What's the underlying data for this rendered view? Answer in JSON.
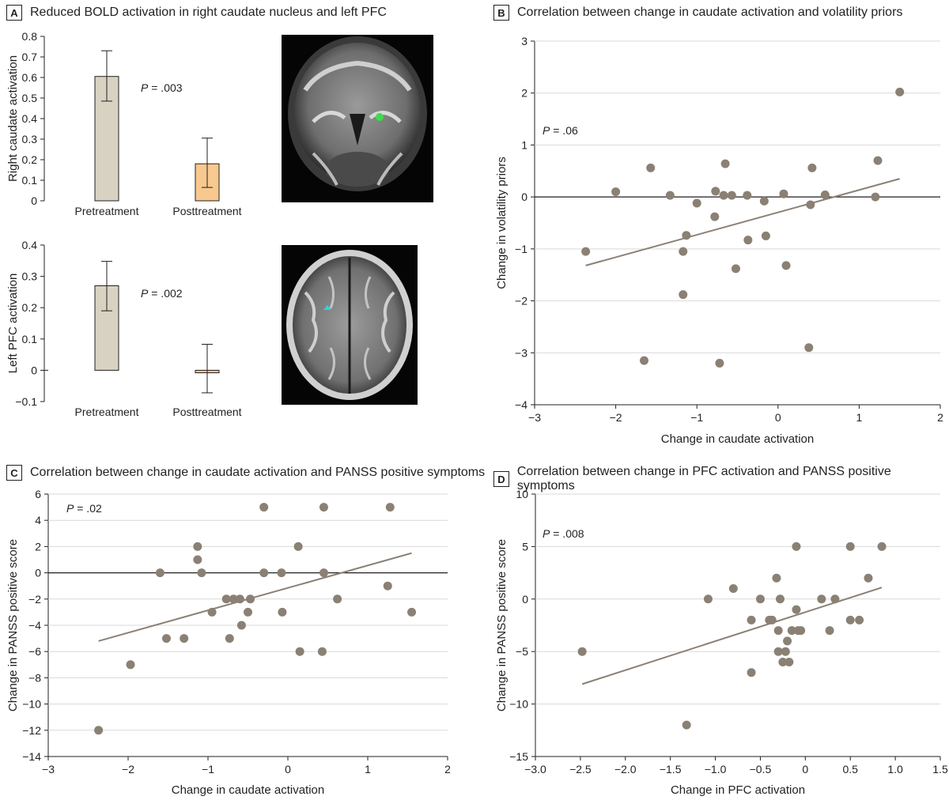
{
  "panel_a": {
    "badge": "A",
    "title": "Reduced BOLD activation in right caudate nucleus and left PFC"
  },
  "panel_b": {
    "badge": "B",
    "title": "Correlation between change in caudate activation and volatility priors"
  },
  "panel_c": {
    "badge": "C",
    "title": "Correlation between change in caudate activation and PANSS positive symptoms"
  },
  "panel_d": {
    "badge": "D",
    "title": "Correlation between change in PFC activation and PANSS positive symptoms"
  },
  "colors": {
    "pretreatment_bar": "#d8d2c3",
    "posttreatment_bar": "#f8c98e",
    "point": "#8a8074",
    "fit_line": "#8a8074",
    "caudate_roi": "#3ddc4c",
    "pfc_roi": "#29d6e0"
  },
  "icons": {
    "brain_coronal": "brain-coronal-mri",
    "brain_axial": "brain-axial-mri"
  },
  "chart_data": [
    {
      "id": "a_top",
      "type": "bar",
      "categories": [
        "Pretreatment",
        "Posttreatment"
      ],
      "values": [
        0.605,
        0.18
      ],
      "error_low": [
        0.485,
        0.065
      ],
      "error_high": [
        0.73,
        0.305
      ],
      "ylabel": "Right caudate activation",
      "ylim": [
        0,
        0.8
      ],
      "yticks": [
        "0",
        "0.1",
        "0.2",
        "0.3",
        "0.4",
        "0.5",
        "0.6",
        "0.7",
        "0.8"
      ],
      "ytick_values": [
        0,
        0.1,
        0.2,
        0.3,
        0.4,
        0.5,
        0.6,
        0.7,
        0.8
      ],
      "p_label": "P",
      "p_value": " = .003"
    },
    {
      "id": "a_bottom",
      "type": "bar",
      "categories": [
        "Pretreatment",
        "Posttreatment"
      ],
      "values": [
        0.27,
        -0.008
      ],
      "error_low": [
        0.19,
        -0.072
      ],
      "error_high": [
        0.348,
        0.083
      ],
      "ylabel": "Left PFC activation",
      "ylim": [
        -0.1,
        0.4
      ],
      "yticks": [
        "−0.1",
        "0",
        "0.1",
        "0.2",
        "0.3",
        "0.4"
      ],
      "ytick_values": [
        -0.1,
        0,
        0.1,
        0.2,
        0.3,
        0.4
      ],
      "p_label": "P",
      "p_value": " = .002"
    },
    {
      "id": "b",
      "type": "scatter",
      "xlabel": "Change in caudate activation",
      "ylabel": "Change in volatility priors",
      "xlim": [
        -3,
        2
      ],
      "ylim": [
        -4,
        3
      ],
      "xticks": [
        "−3",
        "−2",
        "−1",
        "0",
        "1",
        "2"
      ],
      "xtick_values": [
        -3,
        -2,
        -1,
        0,
        1,
        2
      ],
      "yticks": [
        "−4",
        "−3",
        "−2",
        "−1",
        "0",
        "1",
        "2",
        "3"
      ],
      "ytick_values": [
        -4,
        -3,
        -2,
        -1,
        0,
        1,
        2,
        3
      ],
      "zero_line": true,
      "p_label": "P",
      "p_value": " = .06",
      "x": [
        -2.37,
        -2.0,
        -1.57,
        -1.65,
        -1.33,
        -1.17,
        -1.17,
        -1.13,
        -1.0,
        -0.78,
        -0.77,
        -0.72,
        -0.67,
        -0.65,
        -0.57,
        -0.52,
        -0.37,
        -0.38,
        -0.17,
        -0.15,
        0.07,
        0.1,
        0.38,
        0.4,
        0.42,
        0.58,
        1.2,
        1.23,
        1.5
      ],
      "y": [
        -1.05,
        0.1,
        0.56,
        -3.15,
        0.03,
        -1.05,
        -1.88,
        -0.74,
        -0.12,
        -0.38,
        0.11,
        -3.2,
        0.03,
        0.64,
        0.03,
        -1.38,
        -0.83,
        0.03,
        -0.08,
        -0.75,
        0.06,
        -1.32,
        -2.9,
        -0.15,
        0.56,
        0.04,
        0.0,
        0.7,
        2.02
      ],
      "fit": [
        [
          -2.37,
          -1.32
        ],
        [
          1.5,
          0.35
        ]
      ]
    },
    {
      "id": "c",
      "type": "scatter",
      "xlabel": "Change in caudate activation",
      "ylabel": "Change in PANSS positive score",
      "xlim": [
        -3,
        2
      ],
      "ylim": [
        -14,
        6
      ],
      "xticks": [
        "−3",
        "−2",
        "−1",
        "0",
        "1",
        "2"
      ],
      "xtick_values": [
        -3,
        -2,
        -1,
        0,
        1,
        2
      ],
      "yticks": [
        "−14",
        "−12",
        "−10",
        "−8",
        "−6",
        "−4",
        "−2",
        "0",
        "2",
        "4",
        "6"
      ],
      "ytick_values": [
        -14,
        -12,
        -10,
        -8,
        -6,
        -4,
        -2,
        0,
        2,
        4,
        6
      ],
      "zero_line": true,
      "p_label": "P",
      "p_value": " = .02",
      "x": [
        -2.37,
        -1.97,
        -1.6,
        -1.52,
        -1.3,
        -1.13,
        -1.13,
        -1.08,
        -0.95,
        -0.77,
        -0.73,
        -0.68,
        -0.6,
        -0.58,
        -0.5,
        -0.47,
        -0.3,
        -0.3,
        -0.08,
        -0.07,
        0.13,
        0.15,
        0.43,
        0.45,
        0.45,
        0.62,
        1.25,
        1.28,
        1.55
      ],
      "y": [
        -12,
        -7,
        0,
        -5,
        -5,
        2,
        1,
        0,
        -3,
        -2,
        -5,
        -2,
        -2,
        -4,
        -3,
        -2,
        5,
        0,
        0,
        -3,
        2,
        -6,
        -6,
        5,
        0,
        -2,
        -1,
        5,
        -3
      ],
      "fit": [
        [
          -2.37,
          -5.2
        ],
        [
          1.55,
          1.5
        ]
      ]
    },
    {
      "id": "d",
      "type": "scatter",
      "xlabel": "Change in PFC activation",
      "ylabel": "Change in PANSS positive score",
      "xlim": [
        -3.0,
        1.5
      ],
      "ylim": [
        -15,
        10
      ],
      "xticks": [
        "−3.0",
        "−2.5",
        "−2.0",
        "−1.5",
        "−1.0",
        "−0.5",
        "0",
        "0.5",
        "1.0",
        "1.5"
      ],
      "xtick_values": [
        -3.0,
        -2.5,
        -2.0,
        -1.5,
        -1.0,
        -0.5,
        0,
        0.5,
        1.0,
        1.5
      ],
      "yticks": [
        "−15",
        "−10",
        "−5",
        "0",
        "5",
        "10"
      ],
      "ytick_values": [
        -15,
        -10,
        -5,
        0,
        5,
        10
      ],
      "zero_line": false,
      "p_label": "P",
      "p_value": " = .008",
      "x": [
        -2.48,
        -1.32,
        -1.08,
        -0.8,
        -0.6,
        -0.6,
        -0.5,
        -0.4,
        -0.37,
        -0.32,
        -0.3,
        -0.3,
        -0.28,
        -0.25,
        -0.22,
        -0.2,
        -0.18,
        -0.15,
        -0.1,
        -0.1,
        -0.08,
        -0.05,
        0.18,
        0.27,
        0.33,
        0.5,
        0.5,
        0.6,
        0.7,
        0.85
      ],
      "y": [
        -5,
        -12,
        0,
        1,
        -2,
        -7,
        0,
        -2,
        -2,
        2,
        -3,
        -5,
        0,
        -6,
        -5,
        -4,
        -6,
        -3,
        -1,
        5,
        -3,
        -3,
        0,
        -3,
        0,
        5,
        -2,
        -2,
        2,
        5
      ],
      "fit": [
        [
          -2.48,
          -8.1
        ],
        [
          0.85,
          1.1
        ]
      ]
    }
  ]
}
